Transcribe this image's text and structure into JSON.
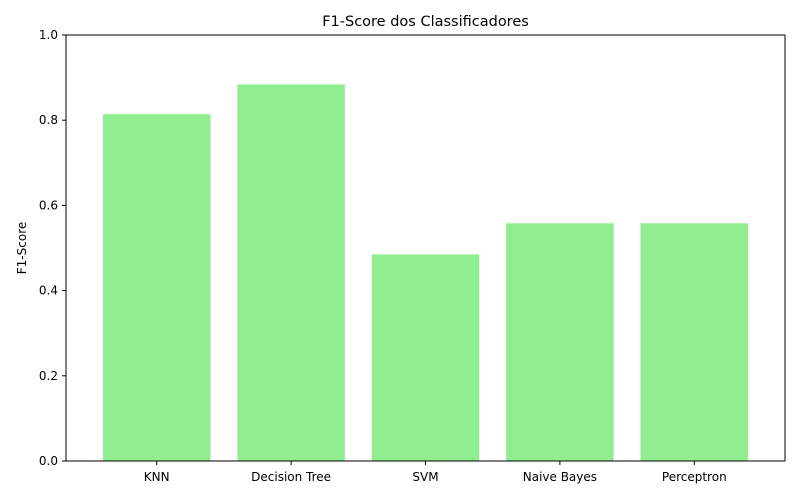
{
  "chart_data": {
    "type": "bar",
    "title": "F1-Score dos Classificadores",
    "xlabel": "",
    "ylabel": "F1-Score",
    "categories": [
      "KNN",
      "Decision Tree",
      "SVM",
      "Naive Bayes",
      "Perceptron"
    ],
    "values": [
      0.814,
      0.884,
      0.485,
      0.558,
      0.558
    ],
    "ylim": [
      0,
      1
    ],
    "yticks": [
      "0.0",
      "0.2",
      "0.4",
      "0.6",
      "0.8",
      "1.0"
    ],
    "ytick_values": [
      0,
      0.2,
      0.4,
      0.6,
      0.8,
      1.0
    ],
    "grid": false,
    "legend": "none",
    "bar_color": "#90ee90"
  }
}
